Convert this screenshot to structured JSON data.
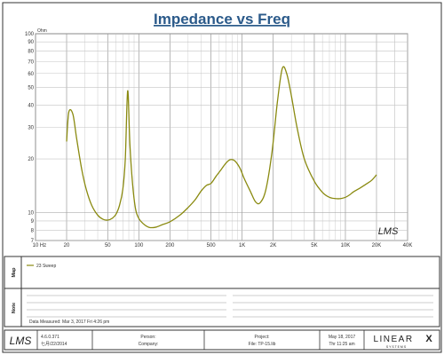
{
  "chart_data": {
    "type": "line",
    "title": "Impedance vs Freq",
    "ylabel": "Ohm",
    "xlabel": "",
    "x_scale": "log",
    "y_scale": "log",
    "xlim": [
      10,
      40000
    ],
    "ylim": [
      7,
      100
    ],
    "x_ticks": [
      {
        "value": 10,
        "label": "10"
      },
      {
        "value": 11,
        "label": "Hz"
      },
      {
        "value": 20,
        "label": "20"
      },
      {
        "value": 50,
        "label": "50"
      },
      {
        "value": 100,
        "label": "100"
      },
      {
        "value": 200,
        "label": "200"
      },
      {
        "value": 500,
        "label": "500"
      },
      {
        "value": 1000,
        "label": "1K"
      },
      {
        "value": 2000,
        "label": "2K"
      },
      {
        "value": 5000,
        "label": "5K"
      },
      {
        "value": 10000,
        "label": "10K"
      },
      {
        "value": 20000,
        "label": "20K"
      },
      {
        "value": 40000,
        "label": "40K"
      }
    ],
    "y_ticks": [
      {
        "value": 100,
        "label": "100"
      },
      {
        "value": 90,
        "label": "90"
      },
      {
        "value": 80,
        "label": "80"
      },
      {
        "value": 70,
        "label": "70"
      },
      {
        "value": 60,
        "label": "60"
      },
      {
        "value": 50,
        "label": "50"
      },
      {
        "value": 40,
        "label": "40"
      },
      {
        "value": 30,
        "label": "30"
      },
      {
        "value": 20,
        "label": "20"
      },
      {
        "value": 10,
        "label": "10"
      },
      {
        "value": 9,
        "label": "9"
      },
      {
        "value": 8,
        "label": "8"
      },
      {
        "value": 7,
        "label": "7"
      }
    ],
    "grid": true,
    "series": [
      {
        "name": "23  Sweep",
        "color": "#8a8a10",
        "x": [
          20,
          21,
          23,
          25,
          28,
          31,
          35,
          40,
          45,
          50,
          55,
          60,
          65,
          70,
          74,
          78,
          82,
          87,
          93,
          100,
          110,
          125,
          145,
          170,
          200,
          250,
          300,
          350,
          400,
          450,
          500,
          560,
          630,
          700,
          770,
          850,
          950,
          1050,
          1200,
          1350,
          1500,
          1700,
          1950,
          2200,
          2450,
          2700,
          3000,
          3400,
          4000,
          5000,
          6000,
          7000,
          8000,
          9000,
          10000,
          11000,
          12000,
          14000,
          16000,
          18000,
          20000
        ],
        "y": [
          25,
          36.5,
          35.5,
          26,
          17.5,
          13.5,
          11,
          9.7,
          9.2,
          9.1,
          9.3,
          9.8,
          11,
          13.5,
          20,
          48,
          24,
          14.5,
          10.5,
          9.3,
          8.7,
          8.3,
          8.3,
          8.6,
          8.9,
          9.7,
          10.7,
          11.8,
          13.2,
          14.2,
          14.6,
          16,
          17.5,
          19,
          19.8,
          19.5,
          17.8,
          15.5,
          13.2,
          11.5,
          11.4,
          13.5,
          22,
          42,
          64,
          60,
          45,
          30,
          20,
          15,
          13,
          12.2,
          12,
          12,
          12.2,
          12.6,
          13.1,
          13.8,
          14.5,
          15.2,
          16.3
        ]
      }
    ]
  },
  "map": {
    "label": "Map",
    "legend_entry": "23  Sweep"
  },
  "note": {
    "label": "Note",
    "lines": [
      "",
      "",
      "",
      ""
    ],
    "date_measured": "Data Measured: Mar  3, 2017  Fri  4:26 pm"
  },
  "footer": {
    "logo_text": "LMS",
    "version": "4.6.0.371",
    "install_date": "七月/22/2014",
    "person_label": "Person:",
    "company_label": "Company:",
    "project_label": "Project:",
    "file_label": "File: TP-15.lib",
    "date": "May 18, 2017",
    "time": "Thr 11:25 am",
    "brand_name": "LINEAR",
    "brand_x": "X",
    "brand_sub": "S Y S T E M S"
  },
  "watermark": "LMS",
  "colors": {
    "accent": "#2b5a8a",
    "grid": "#b0b0b0",
    "border": "#333333",
    "curve": "#8a8a10"
  }
}
